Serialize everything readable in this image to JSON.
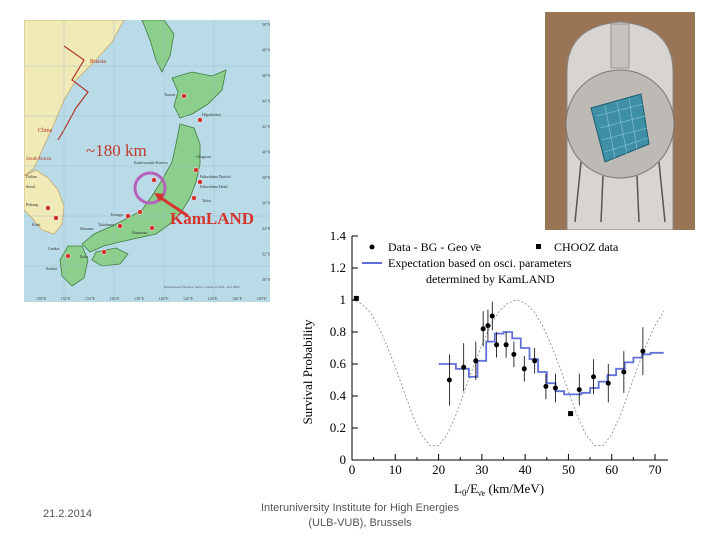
{
  "map": {
    "distance_label": "~180 km",
    "detector_name": "KamLAND",
    "countries": [
      "Russia",
      "China",
      "South Korea"
    ],
    "cities": [
      "Dalian",
      "Seoul",
      "Pohang",
      "Korit",
      "Genkai",
      "Sendai",
      "Ikata",
      "Shimane",
      "Takahama",
      "Hamaoka",
      "Tsuruga",
      "Kashiwazaki-Kariwa",
      "Onagawa",
      "Fukushima Daiichi",
      "Fukushima Daini",
      "Tokai",
      "Tomari",
      "Higashidori"
    ],
    "source_note": "International Nuclear Safety Center at ANL, Oct 2002",
    "lat_labels": [
      "50°N",
      "48°N",
      "46°N",
      "44°N",
      "42°N",
      "40°N",
      "38°N",
      "36°N",
      "34°N",
      "32°N",
      "30°N"
    ],
    "lon_labels": [
      "130°E",
      "132°E",
      "134°E",
      "136°E",
      "138°E",
      "140°E",
      "142°E",
      "144°E",
      "146°E",
      "148°E"
    ]
  },
  "chart_data": {
    "type": "scatter",
    "xlabel": "L0/E (km/MeV)",
    "xlabel_main": "L",
    "xlabel_sub": "0",
    "xlabel_mid": "/E",
    "xlabel_sub2": "ν̄e",
    "xlabel_tail": " (km/MeV)",
    "ylabel": "Survival Probability",
    "xlim": [
      0,
      73
    ],
    "ylim": [
      0,
      1.4
    ],
    "xticks": [
      "0",
      "10",
      "20",
      "30",
      "40",
      "50",
      "60",
      "70"
    ],
    "yticks": [
      "0",
      "0.2",
      "0.4",
      "0.6",
      "0.8",
      "1",
      "1.2",
      "1.4"
    ],
    "legend_location": "top",
    "legend": {
      "data_label": "Data - BG - Geo ν̄e",
      "chooz_label": "CHOOZ data",
      "expect_line1": "Expectation based on osci. parameters",
      "expect_line2": "determined by KamLAND"
    },
    "series": [
      {
        "name": "Data - BG - Geo ν̄e",
        "x": [
          22.5,
          25.8,
          28.6,
          30.3,
          31.4,
          32.4,
          33.4,
          35.6,
          37.4,
          39.8,
          42.2,
          44.8,
          47.0,
          52.5,
          55.8,
          59.2,
          62.8,
          67.2
        ],
        "y": [
          0.5,
          0.58,
          0.62,
          0.82,
          0.84,
          0.9,
          0.72,
          0.72,
          0.66,
          0.57,
          0.62,
          0.46,
          0.45,
          0.44,
          0.52,
          0.48,
          0.55,
          0.68
        ],
        "err": [
          0.16,
          0.15,
          0.12,
          0.11,
          0.1,
          0.09,
          0.08,
          0.08,
          0.08,
          0.08,
          0.08,
          0.08,
          0.09,
          0.1,
          0.11,
          0.12,
          0.13,
          0.15
        ]
      },
      {
        "name": "CHOOZ data",
        "x": [
          1.0,
          50.5
        ],
        "y": [
          1.01,
          0.29
        ]
      },
      {
        "name": "Expectation based on osci. parameters determined by KamLAND",
        "x": [
          20,
          24,
          27,
          29,
          31,
          33,
          35,
          37,
          39,
          41,
          43,
          45,
          47,
          49,
          51,
          53,
          55,
          57,
          59,
          61,
          63,
          65,
          67,
          69,
          72
        ],
        "y": [
          0.6,
          0.57,
          0.52,
          0.62,
          0.74,
          0.79,
          0.8,
          0.76,
          0.7,
          0.63,
          0.55,
          0.48,
          0.43,
          0.41,
          0.41,
          0.42,
          0.45,
          0.49,
          0.53,
          0.57,
          0.61,
          0.64,
          0.66,
          0.67,
          0.67
        ]
      },
      {
        "name": "oscillation curve",
        "x": [
          0,
          2,
          4,
          6,
          8,
          10,
          12,
          14,
          16,
          18,
          20,
          22,
          24,
          26,
          28,
          30,
          32,
          34,
          36,
          38,
          40,
          42,
          44,
          46,
          48,
          50,
          52,
          54,
          56,
          58,
          60,
          62,
          64,
          66,
          68,
          70,
          72
        ],
        "y": [
          1.0,
          0.98,
          0.93,
          0.84,
          0.72,
          0.58,
          0.43,
          0.28,
          0.16,
          0.09,
          0.09,
          0.16,
          0.28,
          0.43,
          0.58,
          0.72,
          0.84,
          0.93,
          0.98,
          1.0,
          0.98,
          0.93,
          0.84,
          0.72,
          0.58,
          0.43,
          0.28,
          0.16,
          0.09,
          0.09,
          0.16,
          0.28,
          0.43,
          0.58,
          0.72,
          0.84,
          0.93
        ]
      }
    ]
  },
  "footer": {
    "date": "21.2.2014",
    "institute_line1": "Interuniversity Institute for High Energies",
    "institute_line2": "(ULB-VUB), Brussels"
  }
}
